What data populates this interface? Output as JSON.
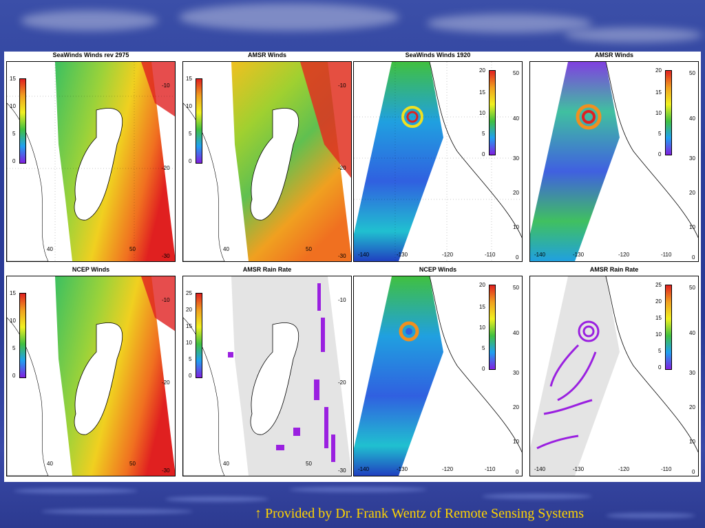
{
  "colors": {
    "background": "#2c3e9a",
    "credit_text": "#ffd400"
  },
  "credit": {
    "arrow_icon": "up-arrow",
    "text": "↑ Provided by Dr. Frank Wentz of Remote Sensing Systems"
  },
  "panels": [
    {
      "title": "SeaWinds Winds  rev 2975",
      "lon_labels": [
        "40",
        "50"
      ],
      "lat_labels": [
        "-10",
        "-20",
        "-30"
      ],
      "cbar": [
        "15",
        "10",
        "5",
        "0"
      ]
    },
    {
      "title": "AMSR Winds",
      "lon_labels": [
        "40",
        "50"
      ],
      "lat_labels": [
        "-10",
        "-20",
        "-30"
      ],
      "cbar": [
        "15",
        "10",
        "5",
        "0"
      ]
    },
    {
      "title": "SeaWinds Winds 1920",
      "lon_labels": [
        "-140",
        "-130",
        "-120",
        "-110"
      ],
      "lat_labels": [
        "50",
        "40",
        "30",
        "20",
        "10",
        "0"
      ],
      "cbar": [
        "20",
        "15",
        "10",
        "5",
        "0"
      ]
    },
    {
      "title": "AMSR Winds",
      "lon_labels": [
        "-140",
        "-130",
        "-120",
        "-110"
      ],
      "lat_labels": [
        "50",
        "40",
        "30",
        "20",
        "10",
        "0"
      ],
      "cbar": [
        "20",
        "15",
        "10",
        "5",
        "0"
      ]
    },
    {
      "title": "NCEP Winds",
      "lon_labels": [
        "40",
        "50"
      ],
      "lat_labels": [
        "-10",
        "-20",
        "-30"
      ],
      "cbar": [
        "15",
        "10",
        "5",
        "0"
      ]
    },
    {
      "title": "AMSR Rain Rate",
      "lon_labels": [
        "40",
        "50"
      ],
      "lat_labels": [
        "-10",
        "-20",
        "-30"
      ],
      "cbar": [
        "25",
        "20",
        "15",
        "10",
        "5",
        "0"
      ]
    },
    {
      "title": "NCEP Winds",
      "lon_labels": [
        "-140",
        "-130",
        "-120",
        "-110"
      ],
      "lat_labels": [
        "50",
        "40",
        "30",
        "20",
        "10",
        "0"
      ],
      "cbar": [
        "20",
        "15",
        "10",
        "5",
        "0"
      ]
    },
    {
      "title": "AMSR Rain Rate",
      "lon_labels": [
        "-140",
        "-130",
        "-120",
        "-110"
      ],
      "lat_labels": [
        "50",
        "40",
        "30",
        "20",
        "10",
        "0"
      ],
      "cbar": [
        "25",
        "20",
        "15",
        "10",
        "5",
        "0"
      ]
    }
  ]
}
